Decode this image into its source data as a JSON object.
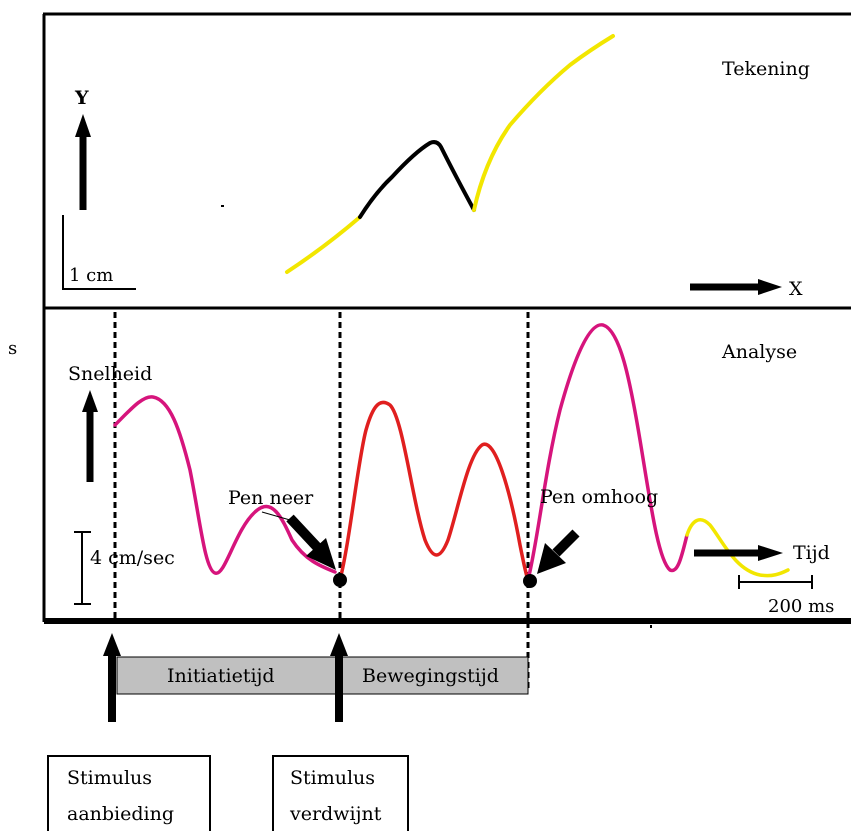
{
  "top_panel": {
    "title": "Tekening",
    "y_axis_label": "Y",
    "x_axis_label": "X",
    "scale_label": "1 cm"
  },
  "bottom_panel": {
    "title": "Analyse",
    "side_mark": "s",
    "speed_label": "Snelheid",
    "speed_scale_label": "4 cm/sec",
    "time_label": "Tijd",
    "time_scale_label": "200 ms",
    "pen_down_label": "Pen neer",
    "pen_up_label": "Pen omhoog"
  },
  "phases": {
    "initiation": "Initiatietijd",
    "movement": "Bewegingstijd"
  },
  "stimulus_boxes": {
    "presentation": [
      "Stimulus",
      "aanbieding"
    ],
    "disappears": [
      "Stimulus",
      "verdwijnt"
    ]
  },
  "colors": {
    "pen_up_trace": "#f2e600",
    "drawing_trace": "#000000",
    "velocity_pen_up": "#d6147c",
    "velocity_pen_down": "#e01f1f",
    "phase_box_fill": "#c0c0c0"
  }
}
